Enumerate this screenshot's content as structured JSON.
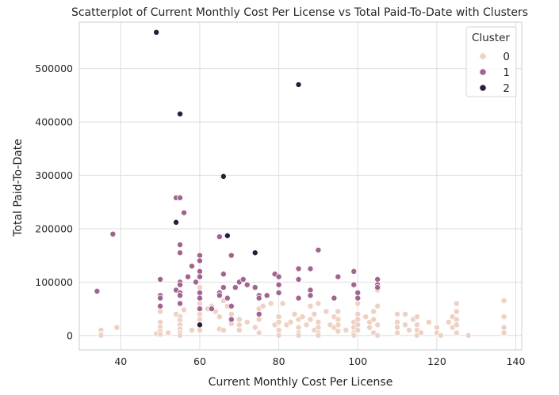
{
  "chart_data": {
    "type": "scatter",
    "title": "Scatterplot of Current Monthly Cost Per License vs Total Paid-To-Date with Clusters",
    "xlabel": "Current Monthly Cost Per License",
    "ylabel": "Total Paid-To-Date",
    "xlim": [
      29.5,
      141.5
    ],
    "ylim": [
      -27000,
      587000
    ],
    "xticks": [
      "40",
      "60",
      "80",
      "100",
      "120",
      "140"
    ],
    "yticks": [
      "0",
      "100000",
      "200000",
      "300000",
      "400000",
      "500000"
    ],
    "xtick_values": [
      40,
      60,
      80,
      100,
      120,
      140
    ],
    "ytick_values": [
      0,
      100000,
      200000,
      300000,
      400000,
      500000
    ],
    "grid": true,
    "legend": {
      "title": "Cluster",
      "placement": "top-right",
      "entries": [
        "0",
        "1",
        "2"
      ]
    },
    "colors": [
      "#efd0c1",
      "#a5628f",
      "#2d1a3e"
    ],
    "series": [
      {
        "name": "0",
        "color": "#efd0c1",
        "points": [
          [
            35,
            10000
          ],
          [
            35,
            3000
          ],
          [
            35,
            0
          ],
          [
            39,
            15000
          ],
          [
            49,
            3000
          ],
          [
            50,
            25000
          ],
          [
            50,
            45000
          ],
          [
            50,
            15000
          ],
          [
            50,
            8000
          ],
          [
            50,
            2000
          ],
          [
            52,
            5000
          ],
          [
            54,
            40000
          ],
          [
            55,
            35000
          ],
          [
            55,
            28000
          ],
          [
            55,
            20000
          ],
          [
            55,
            12000
          ],
          [
            55,
            5000
          ],
          [
            55,
            0
          ],
          [
            56,
            48000
          ],
          [
            58,
            10000
          ],
          [
            60,
            90000
          ],
          [
            60,
            60000
          ],
          [
            60,
            40000
          ],
          [
            60,
            30000
          ],
          [
            60,
            20000
          ],
          [
            60,
            10000
          ],
          [
            62,
            50000
          ],
          [
            63,
            55000
          ],
          [
            64,
            45000
          ],
          [
            65,
            35000
          ],
          [
            65,
            12000
          ],
          [
            66,
            65000
          ],
          [
            66,
            10000
          ],
          [
            67,
            55000
          ],
          [
            68,
            22000
          ],
          [
            68,
            40000
          ],
          [
            70,
            30000
          ],
          [
            70,
            20000
          ],
          [
            70,
            10000
          ],
          [
            72,
            25000
          ],
          [
            74,
            15000
          ],
          [
            75,
            50000
          ],
          [
            75,
            30000
          ],
          [
            75,
            5000
          ],
          [
            76,
            55000
          ],
          [
            78,
            60000
          ],
          [
            79,
            20000
          ],
          [
            80,
            35000
          ],
          [
            80,
            25000
          ],
          [
            80,
            10000
          ],
          [
            80,
            80000
          ],
          [
            80,
            0
          ],
          [
            81,
            60000
          ],
          [
            82,
            20000
          ],
          [
            83,
            25000
          ],
          [
            84,
            40000
          ],
          [
            85,
            30000
          ],
          [
            85,
            15000
          ],
          [
            85,
            5000
          ],
          [
            85,
            0
          ],
          [
            86,
            35000
          ],
          [
            87,
            20000
          ],
          [
            88,
            55000
          ],
          [
            88,
            30000
          ],
          [
            89,
            40000
          ],
          [
            89,
            10000
          ],
          [
            90,
            60000
          ],
          [
            90,
            25000
          ],
          [
            90,
            15000
          ],
          [
            90,
            5000
          ],
          [
            90,
            0
          ],
          [
            92,
            45000
          ],
          [
            93,
            20000
          ],
          [
            94,
            35000
          ],
          [
            94,
            15000
          ],
          [
            95,
            45000
          ],
          [
            95,
            30000
          ],
          [
            95,
            20000
          ],
          [
            95,
            8000
          ],
          [
            97,
            10000
          ],
          [
            99,
            25000
          ],
          [
            99,
            15000
          ],
          [
            99,
            5000
          ],
          [
            99,
            0
          ],
          [
            100,
            60000
          ],
          [
            100,
            40000
          ],
          [
            100,
            30000
          ],
          [
            100,
            20000
          ],
          [
            100,
            10000
          ],
          [
            102,
            35000
          ],
          [
            103,
            25000
          ],
          [
            103,
            15000
          ],
          [
            104,
            45000
          ],
          [
            104,
            30000
          ],
          [
            104,
            5000
          ],
          [
            105,
            55000
          ],
          [
            105,
            85000
          ],
          [
            105,
            20000
          ],
          [
            105,
            0
          ],
          [
            110,
            40000
          ],
          [
            110,
            25000
          ],
          [
            110,
            15000
          ],
          [
            110,
            5000
          ],
          [
            112,
            40000
          ],
          [
            112,
            20000
          ],
          [
            113,
            10000
          ],
          [
            114,
            30000
          ],
          [
            115,
            35000
          ],
          [
            115,
            20000
          ],
          [
            115,
            10000
          ],
          [
            115,
            0
          ],
          [
            116,
            5000
          ],
          [
            118,
            25000
          ],
          [
            120,
            15000
          ],
          [
            120,
            5000
          ],
          [
            121,
            0
          ],
          [
            123,
            25000
          ],
          [
            124,
            35000
          ],
          [
            124,
            15000
          ],
          [
            125,
            60000
          ],
          [
            125,
            45000
          ],
          [
            125,
            30000
          ],
          [
            125,
            20000
          ],
          [
            125,
            5000
          ],
          [
            128,
            0
          ],
          [
            137,
            65000
          ],
          [
            137,
            35000
          ],
          [
            137,
            15000
          ],
          [
            137,
            5000
          ]
        ]
      },
      {
        "name": "1",
        "color": "#a5628f",
        "points": [
          [
            34,
            83000
          ],
          [
            38,
            190000
          ],
          [
            50,
            105000
          ],
          [
            50,
            75000
          ],
          [
            50,
            70000
          ],
          [
            50,
            55000
          ],
          [
            54,
            85000
          ],
          [
            54,
            258000
          ],
          [
            55,
            258000
          ],
          [
            55,
            170000
          ],
          [
            55,
            155000
          ],
          [
            55,
            100000
          ],
          [
            55,
            95000
          ],
          [
            55,
            80000
          ],
          [
            55,
            75000
          ],
          [
            55,
            60000
          ],
          [
            56,
            230000
          ],
          [
            57,
            110000
          ],
          [
            58,
            130000
          ],
          [
            59,
            100000
          ],
          [
            60,
            150000
          ],
          [
            60,
            140000
          ],
          [
            60,
            120000
          ],
          [
            60,
            110000
          ],
          [
            60,
            80000
          ],
          [
            60,
            70000
          ],
          [
            60,
            50000
          ],
          [
            63,
            50000
          ],
          [
            65,
            185000
          ],
          [
            65,
            80000
          ],
          [
            65,
            75000
          ],
          [
            66,
            115000
          ],
          [
            66,
            90000
          ],
          [
            67,
            70000
          ],
          [
            68,
            55000
          ],
          [
            68,
            30000
          ],
          [
            68,
            150000
          ],
          [
            69,
            90000
          ],
          [
            70,
            100000
          ],
          [
            71,
            105000
          ],
          [
            72,
            95000
          ],
          [
            74,
            90000
          ],
          [
            75,
            75000
          ],
          [
            75,
            70000
          ],
          [
            75,
            40000
          ],
          [
            77,
            75000
          ],
          [
            79,
            115000
          ],
          [
            80,
            110000
          ],
          [
            80,
            95000
          ],
          [
            80,
            80000
          ],
          [
            85,
            125000
          ],
          [
            85,
            105000
          ],
          [
            85,
            70000
          ],
          [
            88,
            125000
          ],
          [
            88,
            85000
          ],
          [
            88,
            75000
          ],
          [
            90,
            160000
          ],
          [
            94,
            70000
          ],
          [
            95,
            110000
          ],
          [
            99,
            120000
          ],
          [
            99,
            95000
          ],
          [
            100,
            80000
          ],
          [
            100,
            70000
          ],
          [
            105,
            105000
          ],
          [
            105,
            95000
          ],
          [
            105,
            90000
          ]
        ]
      },
      {
        "name": "2",
        "color": "#2d1a3e",
        "points": [
          [
            49,
            568000
          ],
          [
            54,
            212000
          ],
          [
            55,
            415000
          ],
          [
            60,
            20000
          ],
          [
            66,
            298000
          ],
          [
            67,
            187000
          ],
          [
            74,
            155000
          ],
          [
            85,
            470000
          ]
        ]
      }
    ]
  }
}
